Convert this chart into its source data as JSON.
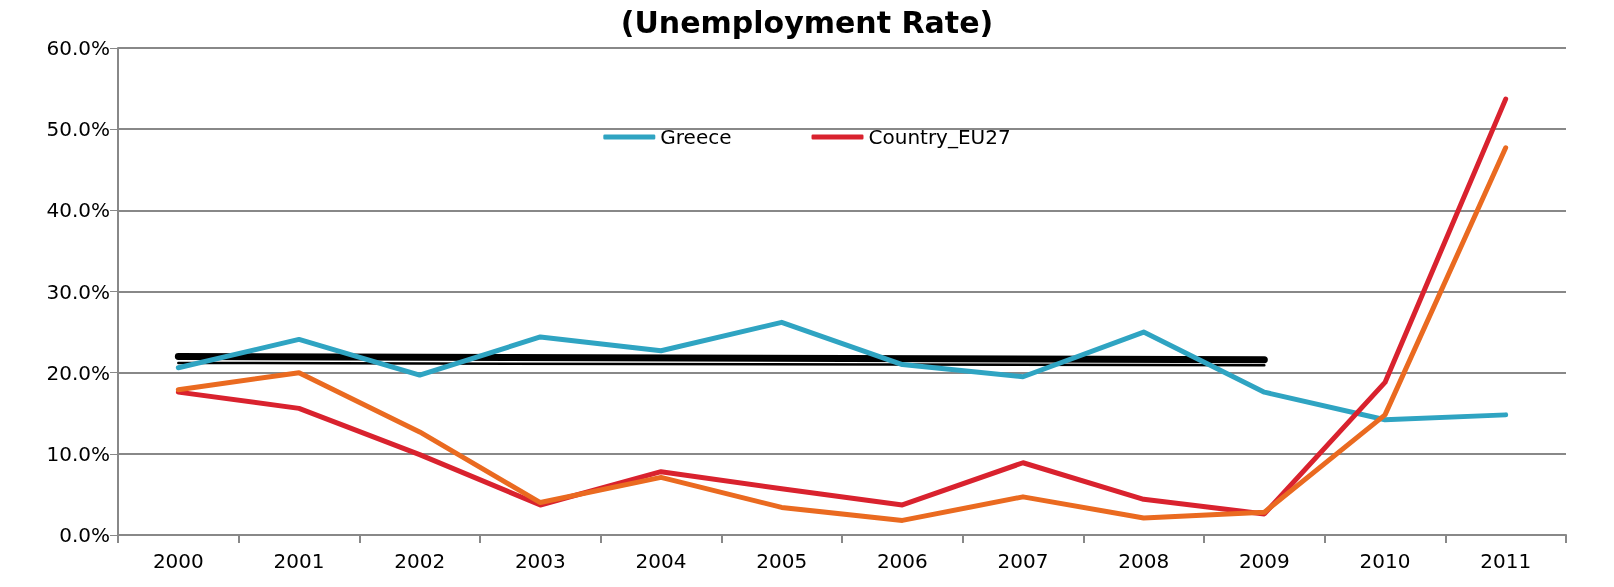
{
  "chart_data": {
    "type": "line",
    "title": "(Unemployment Rate)",
    "categories": [
      "2000",
      "2001",
      "2002",
      "2003",
      "2004",
      "2005",
      "2006",
      "2007",
      "2008",
      "2009",
      "2010",
      "2011"
    ],
    "series": [
      {
        "name": "Greece",
        "color": "#2fa4c2",
        "values": [
          20.6,
          24.1,
          19.7,
          24.4,
          22.7,
          26.2,
          21.0,
          19.5,
          25.0,
          17.6,
          14.2,
          14.8
        ]
      },
      {
        "name": "Country_EU27",
        "color": "#d9222e",
        "values": [
          17.6,
          15.6,
          9.9,
          3.7,
          7.8,
          5.7,
          3.7,
          8.9,
          4.4,
          2.6,
          18.8,
          53.7
        ]
      },
      {
        "color": "#ea6a20",
        "values": [
          17.9,
          20.0,
          12.7,
          4.0,
          7.1,
          3.4,
          1.8,
          4.7,
          2.1,
          2.8,
          14.8,
          47.7
        ]
      },
      {
        "type": "line",
        "color": "#000000",
        "values": [
          22.0,
          null,
          null,
          null,
          null,
          null,
          null,
          null,
          null,
          21.6,
          null,
          null
        ]
      },
      {
        "type": "line",
        "color": "#000000",
        "values": [
          21.2,
          null,
          null,
          null,
          null,
          null,
          null,
          null,
          null,
          20.9,
          null,
          null
        ]
      }
    ],
    "ylim": [
      0,
      60
    ],
    "yticks": [
      {
        "value": 0,
        "label": "0.0%"
      },
      {
        "value": 10,
        "label": "10.0%"
      },
      {
        "value": 20,
        "label": "20.0%"
      },
      {
        "value": 30,
        "label": "30.0%"
      },
      {
        "value": 40,
        "label": "40.0%"
      },
      {
        "value": 50,
        "label": "50.0%"
      },
      {
        "value": 60,
        "label": "60.0%"
      }
    ],
    "grid": "y",
    "legend": "top",
    "marker": "none",
    "line_style": "solid"
  }
}
